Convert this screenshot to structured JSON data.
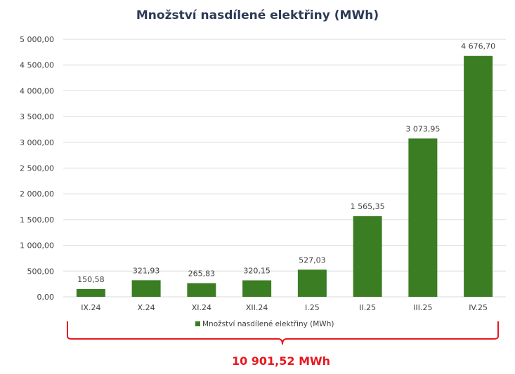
{
  "colors": {
    "bar": "#3a7d22",
    "grid": "#d9d9d9",
    "text": "#404040",
    "title": "#2b3a55",
    "bracket": "#e8171e"
  },
  "chart_data": {
    "type": "bar",
    "title": "Množství nasdílené elektřiny (MWh)",
    "categories": [
      "IX.24",
      "X.24",
      "XI.24",
      "XII.24",
      "I.25",
      "II.25",
      "III.25",
      "IV.25"
    ],
    "series": [
      {
        "name": "Množství nasdílené elektřiny (MWh)",
        "values": [
          150.58,
          321.93,
          265.83,
          320.15,
          527.03,
          1565.35,
          3073.95,
          4676.7
        ],
        "labels": [
          "150,58",
          "321,93",
          "265,83",
          "320,15",
          "527,03",
          "1 565,35",
          "3 073,95",
          "4 676,70"
        ]
      }
    ],
    "ylim": [
      0,
      5000
    ],
    "yticks": [
      0,
      500,
      1000,
      1500,
      2000,
      2500,
      3000,
      3500,
      4000,
      4500,
      5000
    ],
    "ytick_labels": [
      "0,00",
      "500,00",
      "1 000,00",
      "1 500,00",
      "2 000,00",
      "2 500,00",
      "3 000,00",
      "3 500,00",
      "4 000,00",
      "4 500,00",
      "5 000,00"
    ],
    "grid": true,
    "legend_position": "bottom",
    "annotation": {
      "total_label": "10 901,52 MWh"
    }
  }
}
